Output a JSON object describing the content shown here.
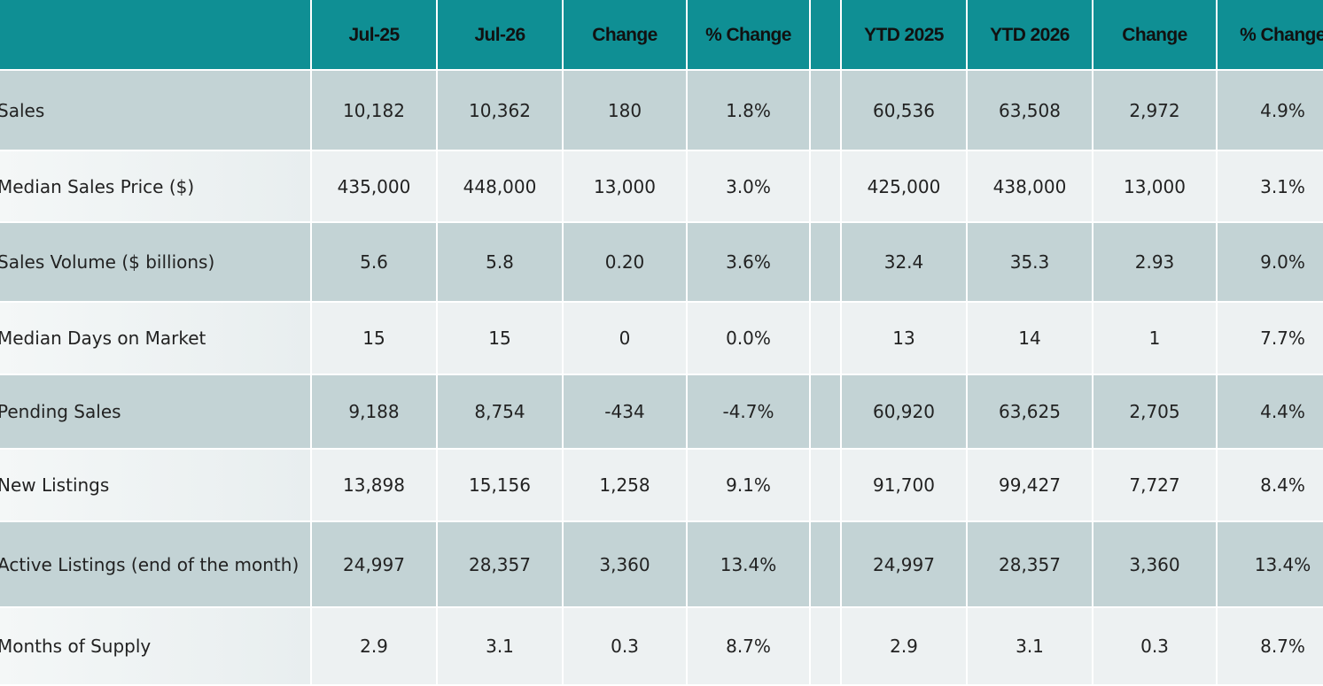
{
  "table": {
    "headers": [
      "",
      "Jul-25",
      "Jul-26",
      "Change",
      "% Change",
      "",
      "YTD 2025",
      "YTD 2026",
      "Change",
      "% Change"
    ],
    "rows": [
      {
        "label": "Sales",
        "jul25": "10,182",
        "jul26": "10,362",
        "change": "180",
        "pct_change": "1.8%",
        "ytd2025": "60,536",
        "ytd2026": "63,508",
        "ytd_change": "2,972",
        "ytd_pct_change": "4.9%"
      },
      {
        "label": "Median Sales Price ($)",
        "jul25": "435,000",
        "jul26": "448,000",
        "change": "13,000",
        "pct_change": "3.0%",
        "ytd2025": "425,000",
        "ytd2026": "438,000",
        "ytd_change": "13,000",
        "ytd_pct_change": "3.1%"
      },
      {
        "label": "Sales Volume ($ billions)",
        "jul25": "5.6",
        "jul26": "5.8",
        "change": "0.20",
        "pct_change": "3.6%",
        "ytd2025": "32.4",
        "ytd2026": "35.3",
        "ytd_change": "2.93",
        "ytd_pct_change": "9.0%"
      },
      {
        "label": "Median Days on Market",
        "jul25": "15",
        "jul26": "15",
        "change": "0",
        "pct_change": "0.0%",
        "ytd2025": "13",
        "ytd2026": "14",
        "ytd_change": "1",
        "ytd_pct_change": "7.7%"
      },
      {
        "label": "Pending Sales",
        "jul25": "9,188",
        "jul26": "8,754",
        "change": "-434",
        "pct_change": "-4.7%",
        "ytd2025": "60,920",
        "ytd2026": "63,625",
        "ytd_change": "2,705",
        "ytd_pct_change": "4.4%"
      },
      {
        "label": "New Listings",
        "jul25": "13,898",
        "jul26": "15,156",
        "change": "1,258",
        "pct_change": "9.1%",
        "ytd2025": "91,700",
        "ytd2026": "99,427",
        "ytd_change": "7,727",
        "ytd_pct_change": "8.4%"
      },
      {
        "label": "Active Listings (end of the month)",
        "jul25": "24,997",
        "jul26": "28,357",
        "change": "3,360",
        "pct_change": "13.4%",
        "ytd2025": "24,997",
        "ytd2026": "28,357",
        "ytd_change": "3,360",
        "ytd_pct_change": "13.4%"
      },
      {
        "label": "Months of Supply",
        "jul25": "2.9",
        "jul26": "3.1",
        "change": "0.3",
        "pct_change": "8.7%",
        "ytd2025": "2.9",
        "ytd2026": "3.1",
        "ytd_change": "0.3",
        "ytd_pct_change": "8.7%"
      }
    ]
  },
  "colors": {
    "header_bg": "#0f8f94",
    "row_dark_bg": "#c3d3d5",
    "row_light_bg": "#edf1f2",
    "text": "#222222"
  }
}
